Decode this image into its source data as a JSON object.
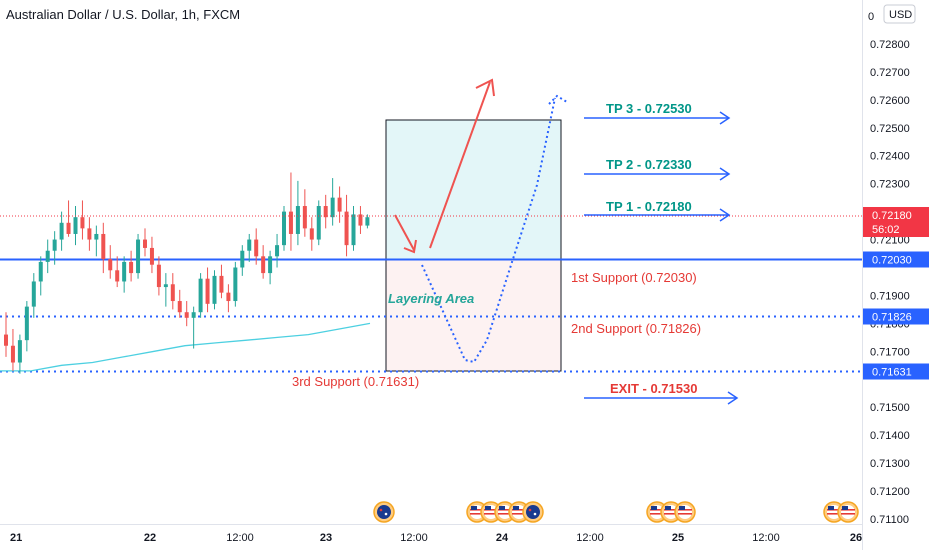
{
  "title": "Australian Dollar / U.S. Dollar, 1h, FXCM",
  "currency_label": "USD",
  "price_axis_top_partial": "0",
  "colors": {
    "up": "#26a69a",
    "down": "#ef5350",
    "support_line": "#2962ff",
    "ma_line": "#4dd0e1",
    "tp_text": "#009688",
    "support_text": "#e53935",
    "arrow_red": "#ef5350",
    "path_blue": "#2962ff",
    "profit_box": "#e0f5f7",
    "loss_box": "#fdf1f1",
    "current_price": "#f23645"
  },
  "chart_data": {
    "type": "candlestick",
    "symbol": "Australian Dollar / U.S. Dollar",
    "interval": "1h",
    "source": "FXCM",
    "ylim": [
      0.7107,
      0.7292
    ],
    "price_ticks": [
      "0.72800",
      "0.72700",
      "0.72600",
      "0.72500",
      "0.72400",
      "0.72300",
      "0.72200",
      "0.72100",
      "0.71900",
      "0.71800",
      "0.71700",
      "0.71500",
      "0.71400",
      "0.71300",
      "0.71200",
      "0.71100"
    ],
    "time_ticks": [
      "21",
      "22",
      "12:00",
      "23",
      "12:00",
      "24",
      "12:00",
      "25",
      "12:00",
      "26"
    ],
    "candles": [
      [
        0.7176,
        0.7184,
        0.7168,
        0.7172
      ],
      [
        0.7172,
        0.7178,
        0.7163,
        0.7166
      ],
      [
        0.7166,
        0.7176,
        0.7162,
        0.7174
      ],
      [
        0.7174,
        0.7188,
        0.717,
        0.7186
      ],
      [
        0.7186,
        0.7198,
        0.7182,
        0.7195
      ],
      [
        0.7195,
        0.7204,
        0.719,
        0.7202
      ],
      [
        0.7202,
        0.721,
        0.7198,
        0.7206
      ],
      [
        0.7206,
        0.7213,
        0.7201,
        0.721
      ],
      [
        0.721,
        0.722,
        0.7206,
        0.7216
      ],
      [
        0.7216,
        0.7224,
        0.7211,
        0.7212
      ],
      [
        0.7212,
        0.7222,
        0.7208,
        0.7218
      ],
      [
        0.7218,
        0.7224,
        0.721,
        0.7214
      ],
      [
        0.7214,
        0.7218,
        0.7206,
        0.721
      ],
      [
        0.721,
        0.7215,
        0.7204,
        0.7212
      ],
      [
        0.7212,
        0.7216,
        0.7198,
        0.7203
      ],
      [
        0.7203,
        0.7208,
        0.7196,
        0.7199
      ],
      [
        0.7199,
        0.7204,
        0.7193,
        0.7195
      ],
      [
        0.7195,
        0.7204,
        0.7191,
        0.7202
      ],
      [
        0.7202,
        0.7206,
        0.7195,
        0.7198
      ],
      [
        0.7198,
        0.7212,
        0.7196,
        0.721
      ],
      [
        0.721,
        0.7214,
        0.7204,
        0.7207
      ],
      [
        0.7207,
        0.7211,
        0.7198,
        0.7201
      ],
      [
        0.7201,
        0.7204,
        0.719,
        0.7193
      ],
      [
        0.7193,
        0.7198,
        0.7186,
        0.7194
      ],
      [
        0.7194,
        0.7198,
        0.7185,
        0.7188
      ],
      [
        0.7188,
        0.7192,
        0.7182,
        0.7184
      ],
      [
        0.7184,
        0.7188,
        0.7179,
        0.7182
      ],
      [
        0.7182,
        0.7186,
        0.7171,
        0.7184
      ],
      [
        0.7184,
        0.7198,
        0.7182,
        0.7196
      ],
      [
        0.7196,
        0.72,
        0.7184,
        0.7187
      ],
      [
        0.7187,
        0.7199,
        0.7185,
        0.7197
      ],
      [
        0.7197,
        0.7201,
        0.7189,
        0.7191
      ],
      [
        0.7191,
        0.7194,
        0.7184,
        0.7188
      ],
      [
        0.7188,
        0.7202,
        0.7186,
        0.72
      ],
      [
        0.72,
        0.7208,
        0.7197,
        0.7206
      ],
      [
        0.7206,
        0.7212,
        0.7202,
        0.721
      ],
      [
        0.721,
        0.7214,
        0.7201,
        0.7204
      ],
      [
        0.7204,
        0.7208,
        0.7196,
        0.7198
      ],
      [
        0.7198,
        0.7206,
        0.7194,
        0.7204
      ],
      [
        0.7204,
        0.7212,
        0.72,
        0.7208
      ],
      [
        0.7208,
        0.7222,
        0.7206,
        0.722
      ],
      [
        0.722,
        0.7234,
        0.7206,
        0.7212
      ],
      [
        0.7212,
        0.7231,
        0.7208,
        0.7222
      ],
      [
        0.7222,
        0.7228,
        0.7211,
        0.7214
      ],
      [
        0.7214,
        0.7218,
        0.7206,
        0.721
      ],
      [
        0.721,
        0.7224,
        0.7208,
        0.7222
      ],
      [
        0.7222,
        0.7226,
        0.7214,
        0.7218
      ],
      [
        0.7218,
        0.7232,
        0.7215,
        0.7225
      ],
      [
        0.7225,
        0.7229,
        0.7216,
        0.722
      ],
      [
        0.722,
        0.7226,
        0.7204,
        0.7208
      ],
      [
        0.7208,
        0.7222,
        0.7206,
        0.7219
      ],
      [
        0.7219,
        0.7222,
        0.7212,
        0.7215
      ],
      [
        0.7215,
        0.7219,
        0.7214,
        0.7218
      ]
    ],
    "ma_series": {
      "name": "",
      "values": [
        0.7163,
        0.7163,
        0.7165,
        0.7166,
        0.7168,
        0.717,
        0.7172,
        0.7173,
        0.7174,
        0.7175,
        0.7176,
        0.7178,
        0.718
      ]
    },
    "current_price": {
      "value": "0.72180",
      "countdown": "56:02"
    },
    "levels": [
      {
        "value": 0.7203,
        "label": "0.72030",
        "style": "solid"
      },
      {
        "value": 0.71826,
        "label": "0.71826",
        "style": "dotted"
      },
      {
        "value": 0.71631,
        "label": "0.71631",
        "style": "dotted"
      }
    ]
  },
  "annotations": {
    "tp3": "TP 3 - 0.72530",
    "tp2": "TP 2 - 0.72330",
    "tp1": "TP 1 - 0.72180",
    "support1": "1st Support (0.72030)",
    "support2": "2nd Support (0.71826)",
    "support3": "3rd Support (0.71631)",
    "exit": "EXIT - 0.71530",
    "layering": "Layering Area"
  },
  "event_flags": [
    {
      "slot": "22-12",
      "flags": [
        "AUD"
      ]
    },
    {
      "slot": "23-late",
      "flags": [
        "USD",
        "USD",
        "USD",
        "USD",
        "AUD"
      ]
    },
    {
      "slot": "24-late",
      "flags": [
        "USD",
        "USD",
        "USD"
      ]
    },
    {
      "slot": "25-late",
      "flags": [
        "USD",
        "USD"
      ]
    }
  ]
}
